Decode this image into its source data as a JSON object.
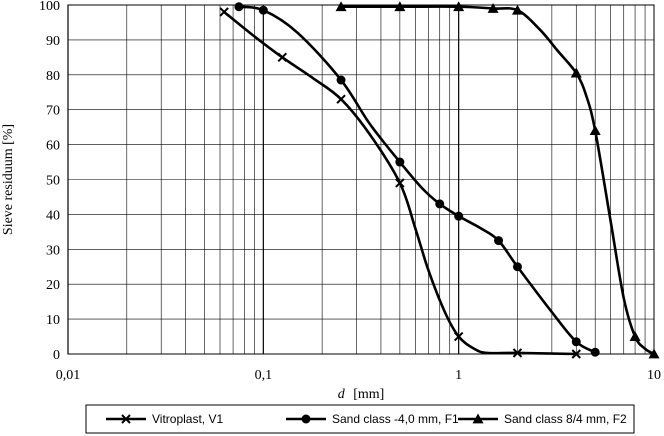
{
  "chart_data": {
    "type": "line",
    "x_scale": "log",
    "xlim": [
      0.01,
      10
    ],
    "ylim": [
      0,
      100
    ],
    "x_ticks": [
      "0,01",
      "0,1",
      "1",
      "10"
    ],
    "x_tick_values": [
      0.01,
      0.1,
      1,
      10
    ],
    "y_ticks": [
      "0",
      "10",
      "20",
      "30",
      "40",
      "50",
      "60",
      "70",
      "80",
      "90",
      "100"
    ],
    "y_tick_values": [
      0,
      10,
      20,
      30,
      40,
      50,
      60,
      70,
      80,
      90,
      100
    ],
    "xlabel_italic": "d",
    "xlabel_unit": "[mm]",
    "ylabel": "Sieve residuum [%]",
    "grid": true,
    "legend_position": "bottom",
    "series": [
      {
        "name": "Vitroplast, V1",
        "marker": "x",
        "color": "#000000",
        "markers_x": [
          0.063,
          0.125,
          0.25,
          0.5,
          1,
          2,
          4
        ],
        "markers_y": [
          98,
          85,
          73,
          49,
          5,
          0.3,
          0
        ],
        "curve_x": [
          0.063,
          0.09,
          0.125,
          0.18,
          0.25,
          0.35,
          0.5,
          0.6,
          0.7,
          0.85,
          1,
          1.2,
          1.4,
          2,
          4
        ],
        "curve_y": [
          98,
          91,
          85,
          79,
          73,
          63,
          49,
          36,
          24,
          12,
          5,
          1.5,
          0.3,
          0.3,
          0
        ]
      },
      {
        "name": "Sand class -4,0 mm, F1",
        "marker": "circle",
        "color": "#000000",
        "markers_x": [
          0.075,
          0.1,
          0.25,
          0.5,
          0.8,
          1,
          1.6,
          2,
          4,
          5
        ],
        "markers_y": [
          99.5,
          98.5,
          78.5,
          55,
          43,
          39.5,
          32.5,
          25,
          3.5,
          0.5
        ],
        "curve_x": [
          0.075,
          0.1,
          0.15,
          0.25,
          0.35,
          0.5,
          0.65,
          0.8,
          1,
          1.3,
          1.6,
          2,
          3,
          4,
          5
        ],
        "curve_y": [
          99.5,
          98.5,
          92,
          78.5,
          66,
          55,
          47.5,
          43,
          39.5,
          36,
          32.5,
          25,
          12,
          3.5,
          0.5
        ]
      },
      {
        "name": "Sand class 8/4 mm, F2",
        "marker": "triangle",
        "color": "#000000",
        "markers_x": [
          0.25,
          0.5,
          1,
          1.5,
          2,
          4,
          5,
          8,
          10
        ],
        "markers_y": [
          99.5,
          99.5,
          99.5,
          99,
          98.5,
          80.5,
          64,
          5,
          0
        ],
        "curve_x": [
          0.25,
          0.5,
          1,
          1.5,
          2,
          2.6,
          3.2,
          4,
          4.5,
          5,
          6,
          7,
          8,
          9,
          10
        ],
        "curve_y": [
          99.5,
          99.5,
          99.5,
          99,
          98.5,
          93,
          87,
          80.5,
          74,
          64,
          38,
          16,
          5,
          1.5,
          0
        ]
      }
    ]
  }
}
